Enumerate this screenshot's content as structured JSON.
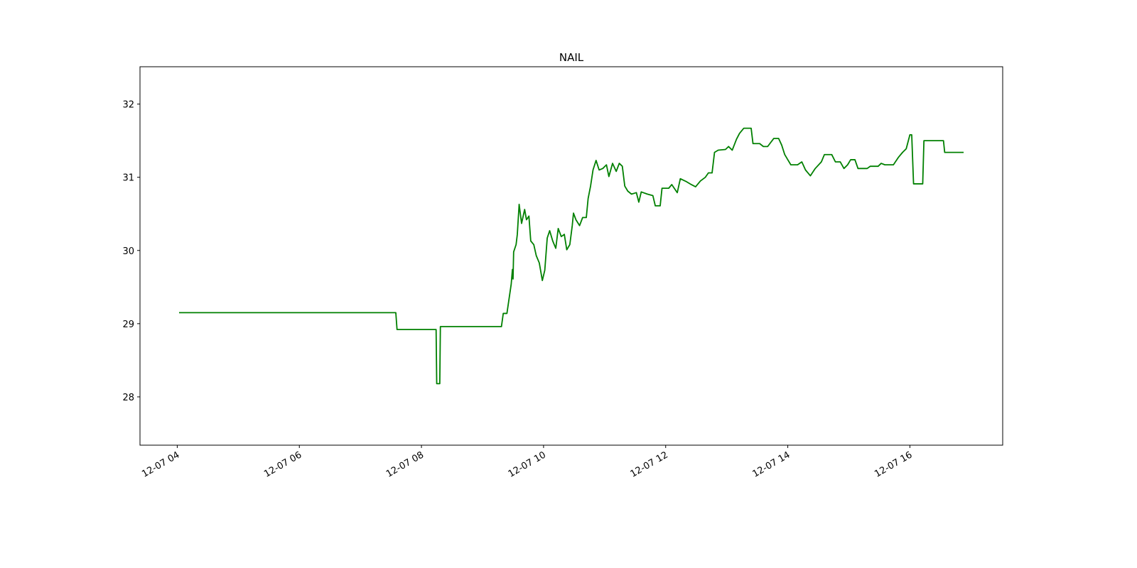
{
  "chart_data": {
    "type": "line",
    "title": "NAIL",
    "x": [
      4.03,
      7.58,
      7.6,
      8.24,
      8.25,
      8.3,
      8.31,
      9.31,
      9.34,
      9.4,
      9.47,
      9.49,
      9.5,
      9.51,
      9.55,
      9.57,
      9.6,
      9.64,
      9.69,
      9.72,
      9.76,
      9.79,
      9.84,
      9.88,
      9.93,
      9.98,
      10.02,
      10.06,
      10.1,
      10.15,
      10.2,
      10.24,
      10.29,
      10.34,
      10.38,
      10.43,
      10.47,
      10.49,
      10.53,
      10.59,
      10.64,
      10.7,
      10.73,
      10.77,
      10.81,
      10.86,
      10.91,
      10.97,
      11.03,
      11.07,
      11.13,
      11.19,
      11.24,
      11.29,
      11.33,
      11.38,
      11.44,
      11.52,
      11.56,
      11.6,
      11.7,
      11.79,
      11.83,
      11.91,
      11.94,
      12.05,
      12.1,
      12.19,
      12.24,
      12.34,
      12.42,
      12.49,
      12.57,
      12.65,
      12.7,
      12.76,
      12.8,
      12.86,
      12.98,
      13.03,
      13.09,
      13.16,
      13.21,
      13.28,
      13.4,
      13.43,
      13.54,
      13.6,
      13.67,
      13.77,
      13.85,
      13.9,
      13.95,
      14.0,
      14.05,
      14.16,
      14.23,
      14.29,
      14.37,
      14.45,
      14.55,
      14.6,
      14.72,
      14.78,
      14.86,
      14.92,
      14.98,
      15.03,
      15.1,
      15.15,
      15.3,
      15.35,
      15.48,
      15.53,
      15.59,
      15.73,
      15.81,
      15.88,
      15.94,
      16.0,
      16.03,
      16.06,
      16.21,
      16.23,
      16.55,
      16.57,
      16.88
    ],
    "series": [
      {
        "color": "#008000",
        "values": [
          29.15,
          29.15,
          28.92,
          28.92,
          28.18,
          28.18,
          28.96,
          28.96,
          29.14,
          29.14,
          29.54,
          29.74,
          29.61,
          29.98,
          30.08,
          30.22,
          30.63,
          30.37,
          30.56,
          30.42,
          30.47,
          30.13,
          30.08,
          29.93,
          29.83,
          29.59,
          29.73,
          30.17,
          30.27,
          30.13,
          30.03,
          30.3,
          30.19,
          30.22,
          30.01,
          30.08,
          30.34,
          30.51,
          30.42,
          30.34,
          30.45,
          30.45,
          30.71,
          30.88,
          31.1,
          31.23,
          31.1,
          31.12,
          31.17,
          31.01,
          31.19,
          31.08,
          31.19,
          31.15,
          30.88,
          30.81,
          30.77,
          30.79,
          30.66,
          30.8,
          30.77,
          30.75,
          30.61,
          30.61,
          30.85,
          30.85,
          30.9,
          30.79,
          30.98,
          30.94,
          30.9,
          30.87,
          30.95,
          31.0,
          31.06,
          31.06,
          31.34,
          31.37,
          31.38,
          31.42,
          31.37,
          31.52,
          31.6,
          31.67,
          31.67,
          31.46,
          31.46,
          31.42,
          31.42,
          31.53,
          31.53,
          31.44,
          31.31,
          31.24,
          31.17,
          31.17,
          31.21,
          31.1,
          31.02,
          31.12,
          31.21,
          31.31,
          31.31,
          31.21,
          31.21,
          31.12,
          31.17,
          31.24,
          31.24,
          31.12,
          31.12,
          31.15,
          31.15,
          31.19,
          31.17,
          31.17,
          31.27,
          31.34,
          31.39,
          31.58,
          31.58,
          30.91,
          30.91,
          31.5,
          31.5,
          31.34,
          31.34
        ]
      }
    ],
    "xlim": [
      3.39,
      17.52
    ],
    "xticks": [
      {
        "value": 4,
        "label": "12-07 04"
      },
      {
        "value": 6,
        "label": "12-07 06"
      },
      {
        "value": 8,
        "label": "12-07 08"
      },
      {
        "value": 10,
        "label": "12-07 10"
      },
      {
        "value": 12,
        "label": "12-07 12"
      },
      {
        "value": 14,
        "label": "12-07 14"
      },
      {
        "value": 16,
        "label": "12-07 16"
      }
    ],
    "ylim": [
      27.34,
      32.51
    ],
    "yticks": [
      28,
      29,
      30,
      31,
      32
    ]
  }
}
